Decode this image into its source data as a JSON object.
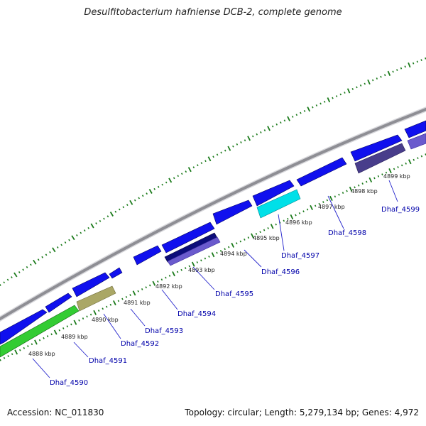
{
  "title": "Desulfitobacterium hafniense DCB-2, complete genome",
  "accession": "Accession: NC_011830",
  "topology": "Topology: circular; Length: 5,279,134 bp; Genes: 4,972",
  "colors": {
    "forward": "#1010ee",
    "backbone": "#8e8e94",
    "green": "#33cc33",
    "khaki": "#aaa766",
    "cyan": "#00e0e8",
    "navy": "#0c0c7a",
    "slate": "#6a5acd",
    "darkslate": "#483d8b",
    "tick_green": "#1a7a1a",
    "label_line": "#2222cc"
  },
  "kbp_labels": [
    "4888 kbp",
    "4889 kbp",
    "4890 kbp",
    "4891 kbp",
    "4892 kbp",
    "4893 kbp",
    "4894 kbp",
    "4895 kbp",
    "4896 kbp",
    "4897 kbp",
    "4898 kbp",
    "4899 kbp"
  ],
  "gene_labels": [
    "Dhaf_4590",
    "Dhaf_4591",
    "Dhaf_4592",
    "Dhaf_4593",
    "Dhaf_4594",
    "Dhaf_4595",
    "Dhaf_4596",
    "Dhaf_4597",
    "Dhaf_4598",
    "Dhaf_4599"
  ]
}
